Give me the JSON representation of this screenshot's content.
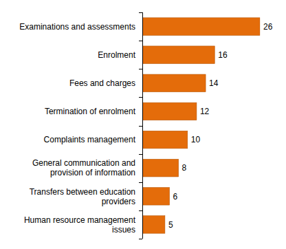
{
  "chart_data": {
    "type": "bar",
    "orientation": "horizontal",
    "categories": [
      "Examinations and assessments",
      "Enrolment",
      "Fees and charges",
      "Termination of enrolment",
      "Complaints management",
      "General communication and provision of information",
      "Transfers between education providers",
      "Human resource management issues"
    ],
    "values": [
      26,
      16,
      14,
      12,
      10,
      8,
      6,
      5
    ],
    "color": "#e46c0a",
    "xlim": [
      0,
      26
    ],
    "data_labels": true,
    "tick_labels": "y",
    "grid": false
  }
}
